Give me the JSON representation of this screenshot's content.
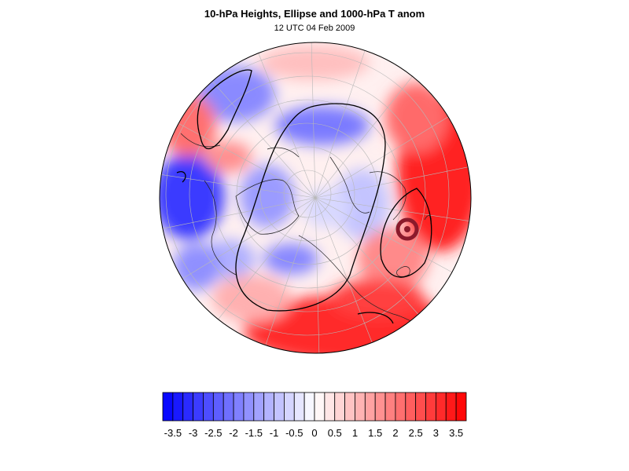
{
  "title": "10-hPa Heights, Ellipse and 1000-hPa T anom",
  "subtitle": "12 UTC 04 Feb 2009",
  "colors": {
    "cold": "#0000ff",
    "neutral": "#ffffff",
    "warm": "#ff0000",
    "contour": "#000000",
    "marker": "#8b1a2b"
  },
  "colorbar": {
    "levels": [
      -3.75,
      -3.5,
      -3.25,
      -3,
      -2.75,
      -2.5,
      -2.25,
      -2,
      -1.75,
      -1.5,
      -1.25,
      -1,
      -0.75,
      -0.5,
      -0.25,
      0,
      0.25,
      0.5,
      0.75,
      1,
      1.25,
      1.5,
      1.75,
      2,
      2.25,
      2.5,
      2.75,
      3,
      3.25,
      3.5,
      3.75
    ],
    "tick_labels": [
      "-3.5",
      "-3",
      "-2.5",
      "-2",
      "-1.5",
      "-1",
      "-0.5",
      "0",
      "0.5",
      "1",
      "1.5",
      "2",
      "2.5",
      "3",
      "3.5"
    ]
  }
}
